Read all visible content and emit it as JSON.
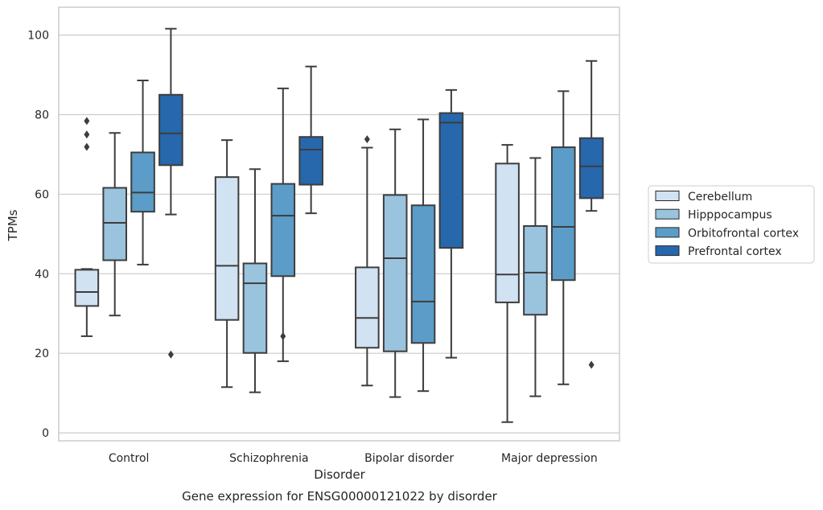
{
  "chart_data": {
    "type": "box",
    "caption": "Gene expression for ENSG00000121022 by disorder",
    "xlabel": "Disorder",
    "ylabel": "TPMs",
    "ylim": [
      -2,
      107
    ],
    "yticks": [
      0,
      20,
      40,
      60,
      80,
      100
    ],
    "grid": true,
    "legend_placement": "right",
    "categories": [
      "Control",
      "Schizophrenia",
      "Bipolar disorder",
      "Major depression"
    ],
    "series": [
      {
        "name": "Cerebellum",
        "color": "#d1e2f2",
        "boxes": [
          {
            "whisker_low": 24.3,
            "q1": 31.9,
            "median": 35.4,
            "q3": 41.0,
            "whisker_high": 41.2,
            "outliers": [
              71.9,
              75.0,
              78.4
            ]
          },
          {
            "whisker_low": 11.5,
            "q1": 28.4,
            "median": 42.0,
            "q3": 64.3,
            "whisker_high": 73.6,
            "outliers": []
          },
          {
            "whisker_low": 11.9,
            "q1": 21.4,
            "median": 28.9,
            "q3": 41.6,
            "whisker_high": 71.7,
            "outliers": [
              73.8
            ]
          },
          {
            "whisker_low": 2.7,
            "q1": 32.8,
            "median": 39.8,
            "q3": 67.7,
            "whisker_high": 72.4,
            "outliers": []
          }
        ]
      },
      {
        "name": "Hipppocampus",
        "color": "#9ac3de",
        "boxes": [
          {
            "whisker_low": 29.5,
            "q1": 43.4,
            "median": 52.8,
            "q3": 61.6,
            "whisker_high": 75.4,
            "outliers": []
          },
          {
            "whisker_low": 10.2,
            "q1": 20.1,
            "median": 37.6,
            "q3": 42.6,
            "whisker_high": 66.3,
            "outliers": []
          },
          {
            "whisker_low": 9.0,
            "q1": 20.5,
            "median": 43.9,
            "q3": 59.8,
            "whisker_high": 76.3,
            "outliers": []
          },
          {
            "whisker_low": 9.2,
            "q1": 29.7,
            "median": 40.3,
            "q3": 52.0,
            "whisker_high": 69.1,
            "outliers": []
          }
        ]
      },
      {
        "name": "Orbitofrontal cortex",
        "color": "#5b9dc8",
        "boxes": [
          {
            "whisker_low": 42.3,
            "q1": 55.6,
            "median": 60.4,
            "q3": 70.5,
            "whisker_high": 88.6,
            "outliers": []
          },
          {
            "whisker_low": 18.0,
            "q1": 39.4,
            "median": 54.6,
            "q3": 62.6,
            "whisker_high": 86.6,
            "outliers": [
              24.3
            ]
          },
          {
            "whisker_low": 10.5,
            "q1": 22.6,
            "median": 33.0,
            "q3": 57.2,
            "whisker_high": 78.8,
            "outliers": []
          },
          {
            "whisker_low": 12.2,
            "q1": 38.4,
            "median": 51.8,
            "q3": 71.8,
            "whisker_high": 85.9,
            "outliers": []
          }
        ]
      },
      {
        "name": "Prefrontal cortex",
        "color": "#2767ac",
        "boxes": [
          {
            "whisker_low": 54.9,
            "q1": 67.3,
            "median": 75.3,
            "q3": 85.0,
            "whisker_high": 101.6,
            "outliers": [
              19.7
            ]
          },
          {
            "whisker_low": 55.2,
            "q1": 62.4,
            "median": 71.2,
            "q3": 74.4,
            "whisker_high": 92.1,
            "outliers": []
          },
          {
            "whisker_low": 18.9,
            "q1": 46.5,
            "median": 78.0,
            "q3": 80.4,
            "whisker_high": 86.2,
            "outliers": []
          },
          {
            "whisker_low": 55.8,
            "q1": 59.0,
            "median": 67.0,
            "q3": 74.1,
            "whisker_high": 93.5,
            "outliers": [
              17.1
            ]
          }
        ]
      }
    ]
  }
}
